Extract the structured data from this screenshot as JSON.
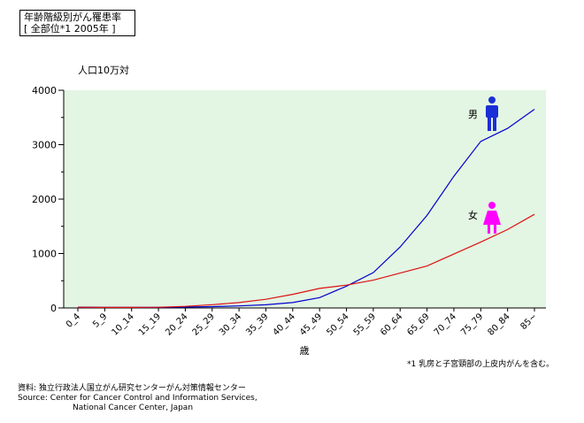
{
  "chart_data": {
    "type": "line",
    "title": "年齢階級別がん罹患率",
    "subtitle": "[ 全部位*1 2005年 ]",
    "ylabel": "人口10万対",
    "xlabel": "歳",
    "ylim": [
      0,
      4000
    ],
    "yticks": [
      0,
      1000,
      2000,
      3000,
      4000
    ],
    "grid": false,
    "background": "#e3f5e3",
    "categories": [
      "0_4",
      "5_9",
      "10_14",
      "15_19",
      "20_24",
      "25_29",
      "30_34",
      "35_39",
      "40_44",
      "45_49",
      "50_54",
      "55_59",
      "60_64",
      "65_69",
      "70_74",
      "75_79",
      "80_84",
      "85~"
    ],
    "series": [
      {
        "name": "男",
        "color": "#0000cc",
        "values": [
          14,
          10,
          10,
          12,
          17,
          25,
          37,
          58,
          100,
          190,
          400,
          650,
          1120,
          1700,
          2420,
          3060,
          3300,
          3650
        ]
      },
      {
        "name": "女",
        "color": "#dd1111",
        "values": [
          13,
          9,
          9,
          13,
          30,
          60,
          100,
          160,
          250,
          360,
          420,
          510,
          640,
          770,
          990,
          1210,
          1440,
          1720
        ]
      }
    ],
    "icon_colors": {
      "male": "#1a2fd6",
      "female": "#ff00ff"
    }
  },
  "footnote": "*1 乳房と子宮頸部の上皮内がんを含む。",
  "source": {
    "line1": "資料: 独立行政法人国立がん研究センターがん対策情報センター",
    "line2": "Source: Center for Cancer Control and Information Services,",
    "line3": "National Cancer Center, Japan"
  }
}
